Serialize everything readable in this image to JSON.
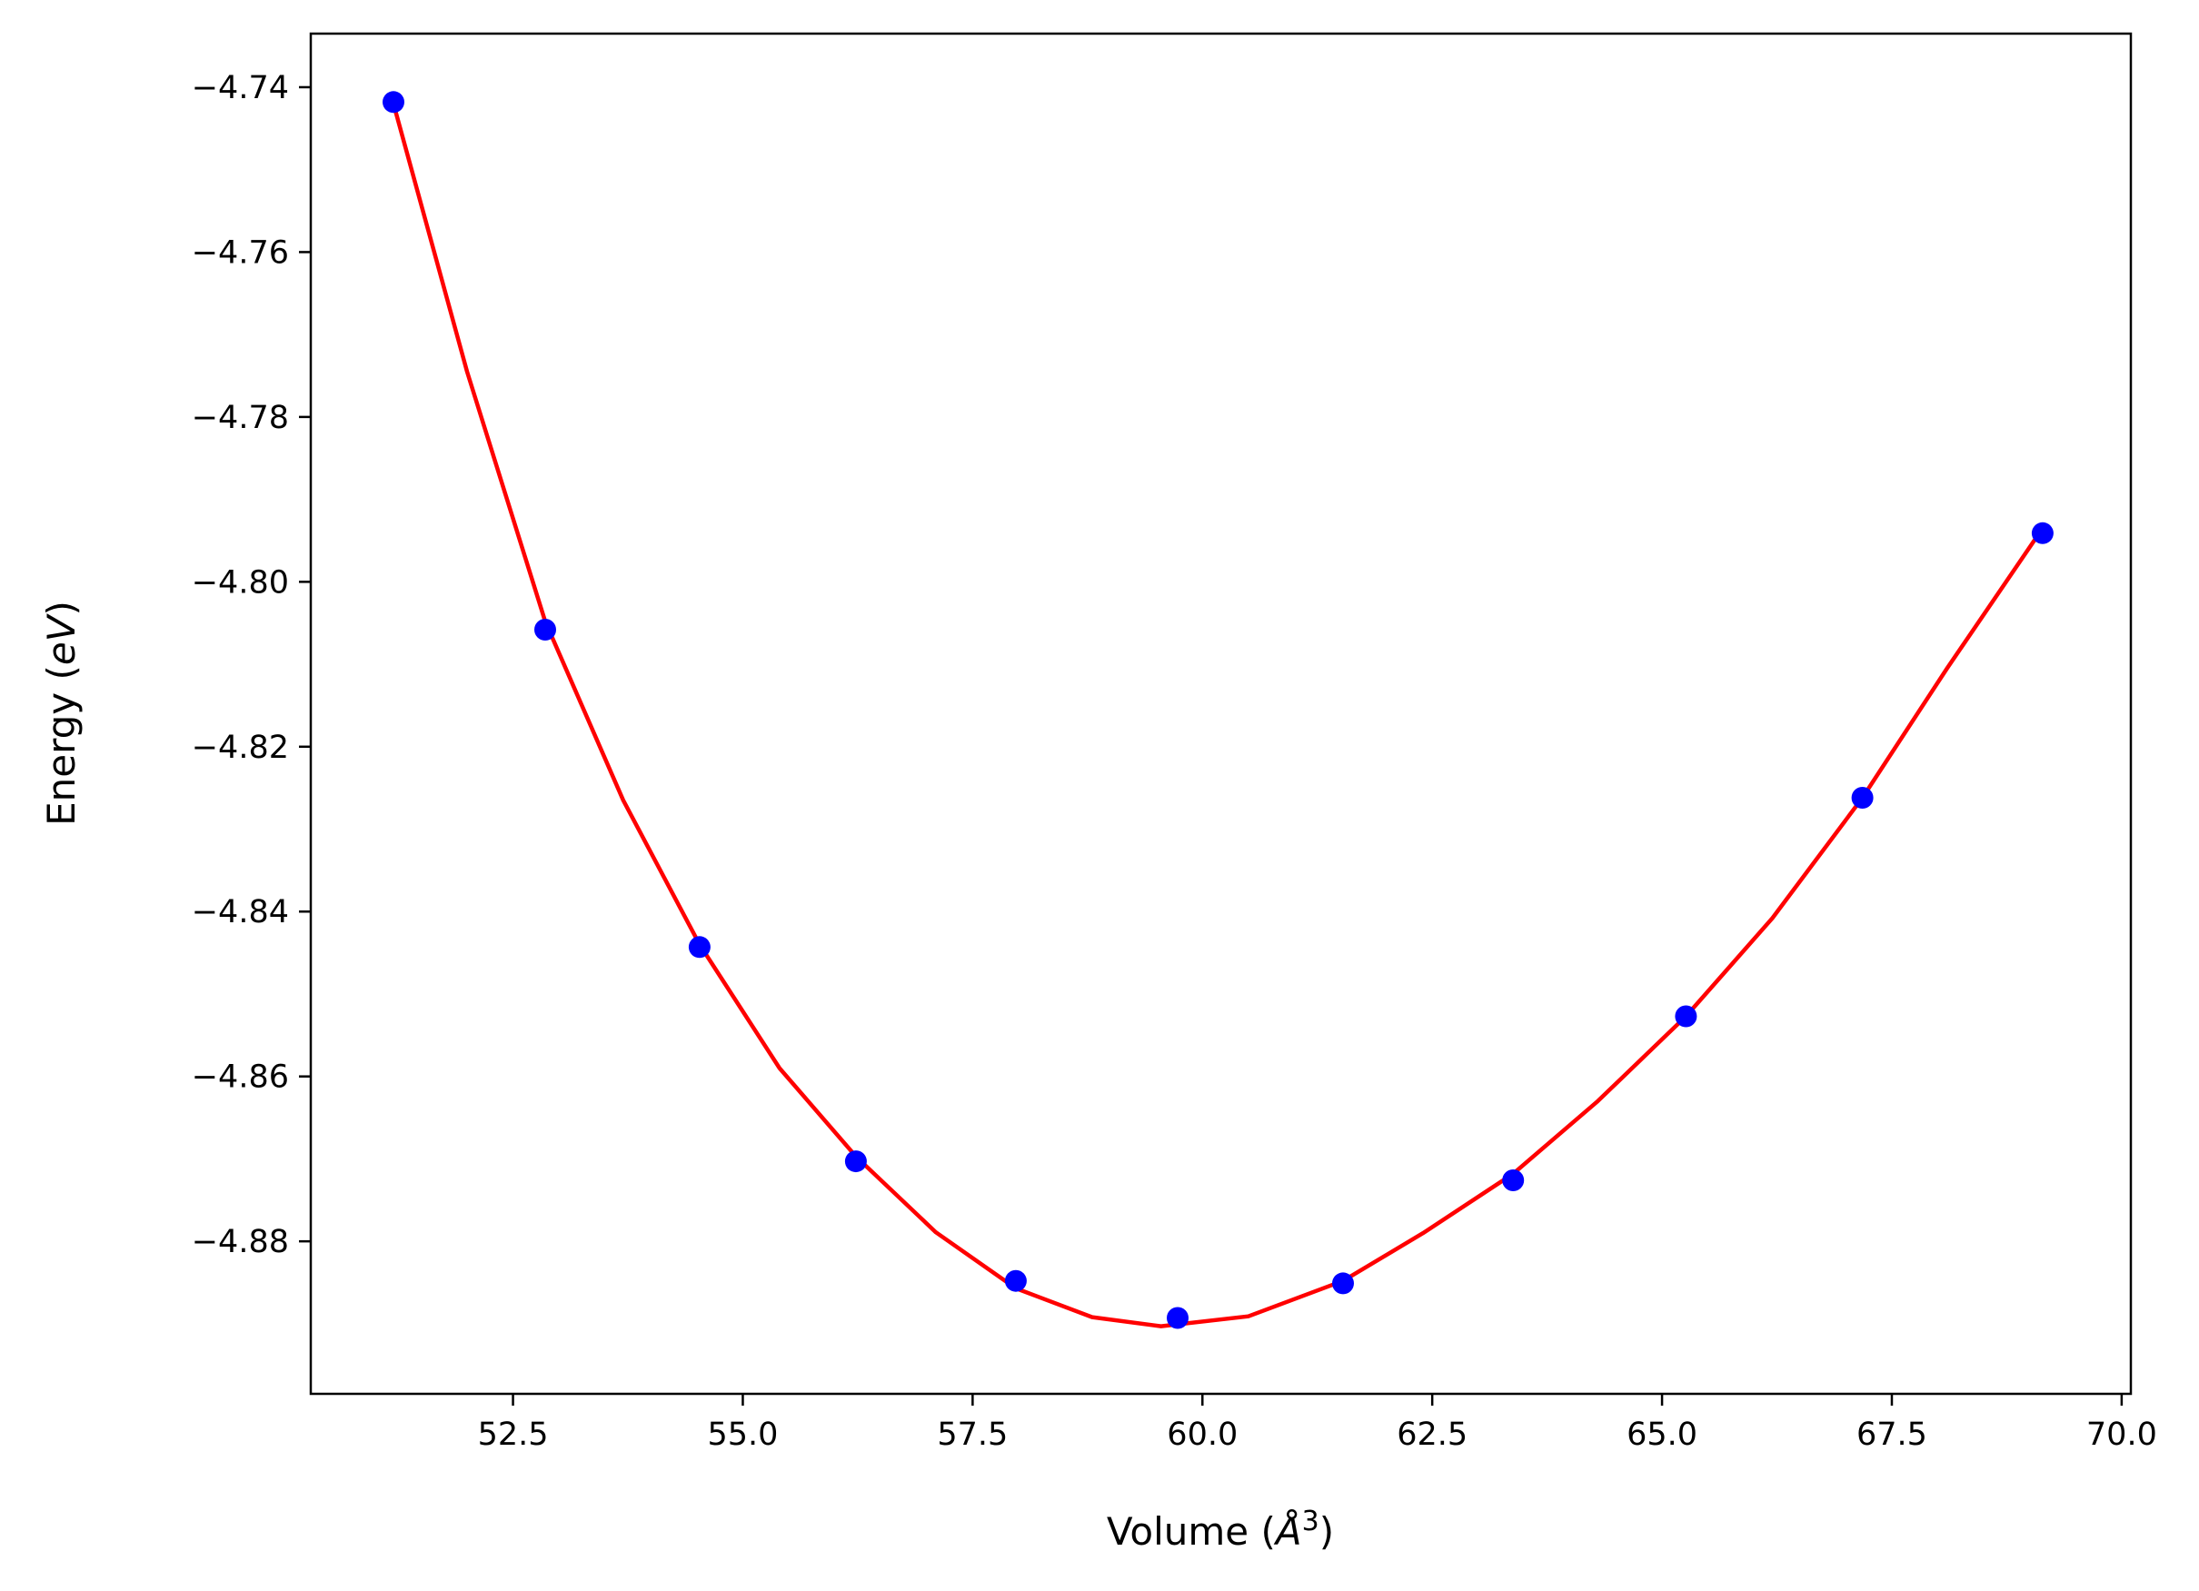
{
  "chart_data": {
    "type": "scatter",
    "title": "",
    "xlabel": {
      "prefix": "Volume (",
      "italic": "Å",
      "sup": "3",
      "suffix": ")"
    },
    "ylabel": {
      "prefix": "Energy (",
      "italic": "eV",
      "suffix": ")"
    },
    "xlim": [
      50.3,
      70.1
    ],
    "ylim": [
      -4.8985,
      -4.7335
    ],
    "xticks": [
      52.5,
      55.0,
      57.5,
      60.0,
      62.5,
      65.0,
      67.5,
      70.0
    ],
    "xtick_labels": [
      "52.5",
      "55.0",
      "57.5",
      "60.0",
      "62.5",
      "65.0",
      "67.5",
      "70.0"
    ],
    "yticks": [
      -4.74,
      -4.76,
      -4.78,
      -4.8,
      -4.82,
      -4.84,
      -4.86,
      -4.88
    ],
    "ytick_labels": [
      "−4.74",
      "−4.76",
      "−4.78",
      "−4.80",
      "−4.82",
      "−4.84",
      "−4.86",
      "−4.88"
    ],
    "grid": false,
    "series": [
      {
        "kind": "points",
        "color": "#0000ff",
        "x": [
          51.2,
          52.85,
          54.53,
          56.23,
          57.97,
          59.73,
          61.53,
          63.38,
          65.26,
          67.18,
          69.14
        ],
        "y": [
          -4.7418,
          -4.8058,
          -4.8443,
          -4.8703,
          -4.8848,
          -4.8893,
          -4.8851,
          -4.8726,
          -4.8527,
          -4.8262,
          -4.7941
        ]
      },
      {
        "kind": "fit-curve",
        "color": "#ff0000",
        "x": [
          51.2,
          52.0,
          52.85,
          53.7,
          54.53,
          55.4,
          56.23,
          57.1,
          57.97,
          58.8,
          59.55,
          60.5,
          61.53,
          62.4,
          63.38,
          64.3,
          65.26,
          66.2,
          67.18,
          68.1,
          69.14
        ],
        "y": [
          -4.742,
          -4.7745,
          -4.8048,
          -4.8265,
          -4.844,
          -4.859,
          -4.8697,
          -4.8789,
          -4.8857,
          -4.8892,
          -4.8903,
          -4.8891,
          -4.8848,
          -4.879,
          -4.8718,
          -4.863,
          -4.8527,
          -4.8408,
          -4.8262,
          -4.8105,
          -4.7935
        ]
      }
    ]
  }
}
